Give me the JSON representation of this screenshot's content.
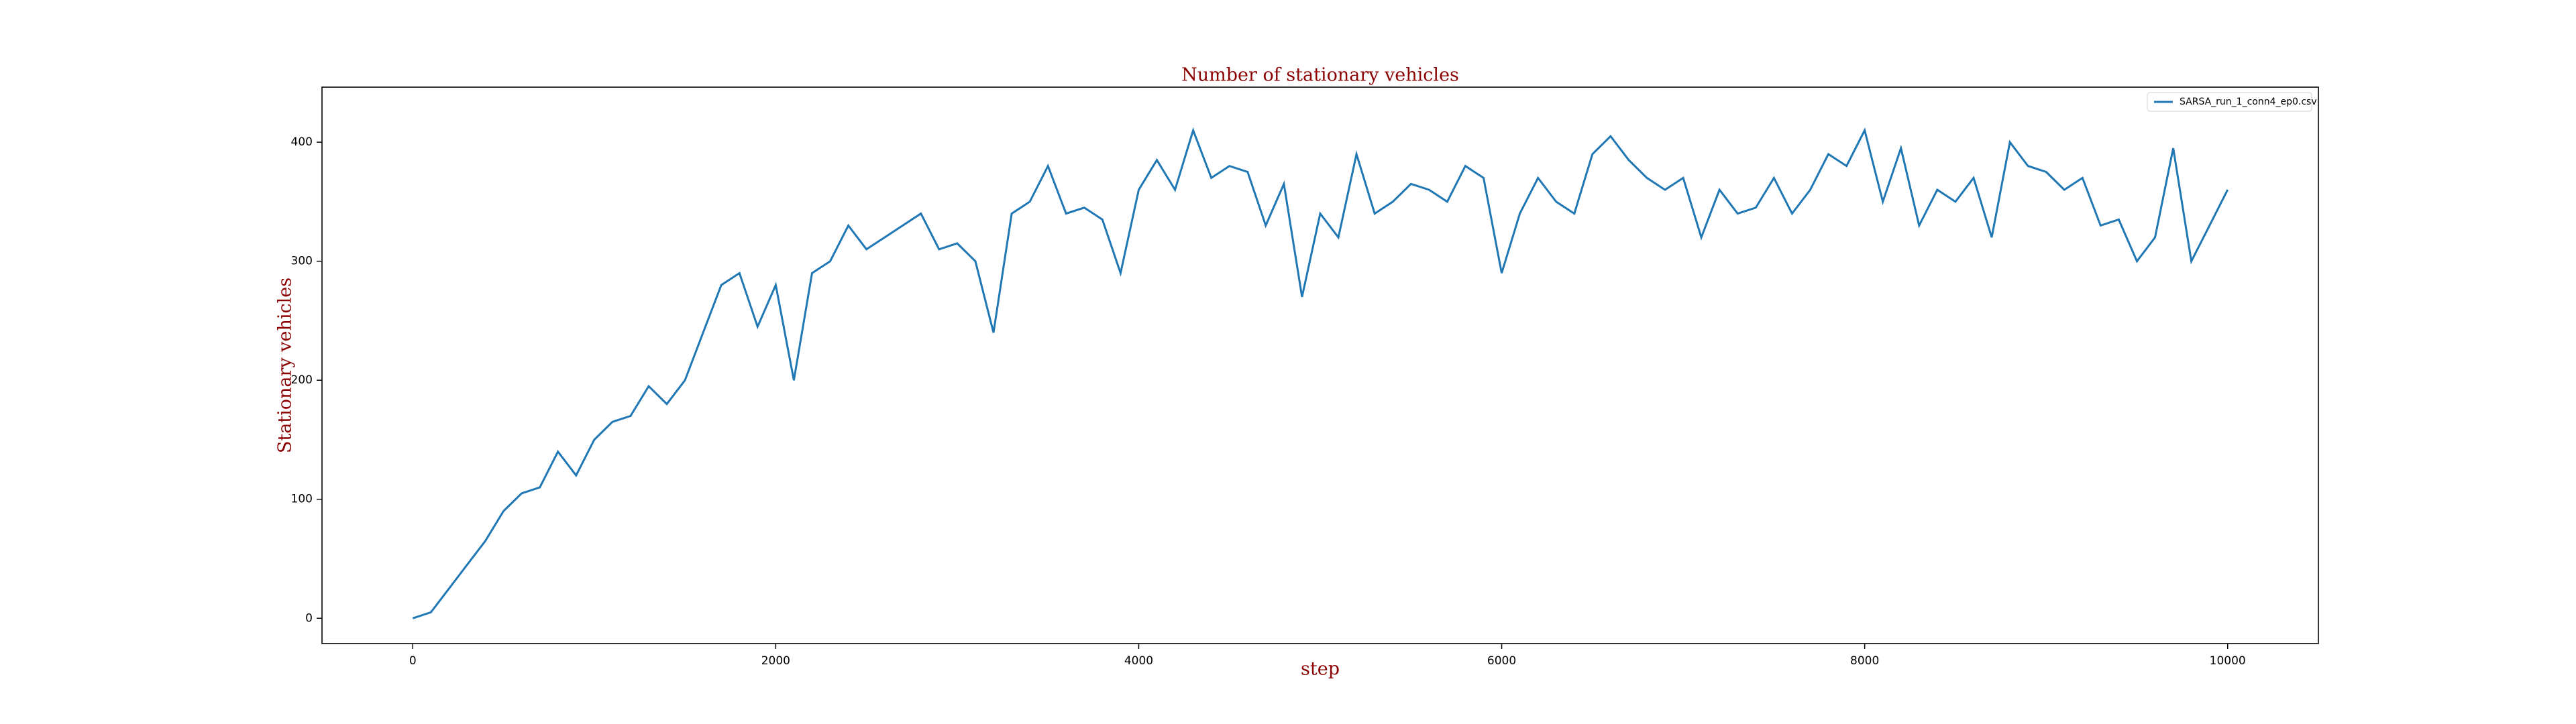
{
  "chart_data": {
    "type": "line",
    "title": "Number of stationary vehicles",
    "xlabel": "step",
    "ylabel": "Stationary vehicles",
    "x": [
      0,
      100,
      200,
      300,
      400,
      500,
      600,
      700,
      800,
      900,
      1000,
      1100,
      1200,
      1300,
      1400,
      1500,
      1600,
      1700,
      1800,
      1900,
      2000,
      2100,
      2200,
      2300,
      2400,
      2500,
      2600,
      2700,
      2800,
      2900,
      3000,
      3100,
      3200,
      3300,
      3400,
      3500,
      3600,
      3700,
      3800,
      3900,
      4000,
      4100,
      4200,
      4300,
      4400,
      4500,
      4600,
      4700,
      4800,
      4900,
      5000,
      5100,
      5200,
      5300,
      5400,
      5500,
      5600,
      5700,
      5800,
      5900,
      6000,
      6100,
      6200,
      6300,
      6400,
      6500,
      6600,
      6700,
      6800,
      6900,
      7000,
      7100,
      7200,
      7300,
      7400,
      7500,
      7600,
      7700,
      7800,
      7900,
      8000,
      8100,
      8200,
      8300,
      8400,
      8500,
      8600,
      8700,
      8800,
      8900,
      9000,
      9100,
      9200,
      9300,
      9400,
      9500,
      9600,
      9700,
      9800,
      9900,
      10000
    ],
    "series": [
      {
        "name": "SARSA_run_1_conn4_ep0.csv",
        "color": "#1f77b4",
        "values": [
          0,
          5,
          25,
          45,
          65,
          90,
          105,
          110,
          140,
          120,
          150,
          165,
          170,
          195,
          180,
          200,
          240,
          280,
          290,
          245,
          280,
          200,
          290,
          300,
          330,
          310,
          320,
          330,
          340,
          310,
          315,
          300,
          240,
          340,
          350,
          380,
          340,
          345,
          335,
          290,
          360,
          385,
          360,
          410,
          370,
          380,
          375,
          330,
          365,
          270,
          340,
          320,
          390,
          340,
          350,
          365,
          360,
          350,
          380,
          370,
          290,
          340,
          370,
          350,
          340,
          390,
          405,
          385,
          370,
          360,
          370,
          320,
          360,
          340,
          345,
          370,
          340,
          360,
          390,
          380,
          410,
          350,
          395,
          330,
          360,
          350,
          370,
          320,
          400,
          380,
          375,
          360,
          370,
          330,
          335,
          300,
          320,
          395,
          300,
          330,
          360
        ]
      }
    ],
    "xlim": [
      -500,
      10500
    ],
    "ylim": [
      -21.25,
      446.25
    ],
    "xticks": [
      0,
      2000,
      4000,
      6000,
      8000,
      10000
    ],
    "yticks": [
      0,
      100,
      200,
      300,
      400
    ],
    "grid": false,
    "legend": "upper right"
  }
}
